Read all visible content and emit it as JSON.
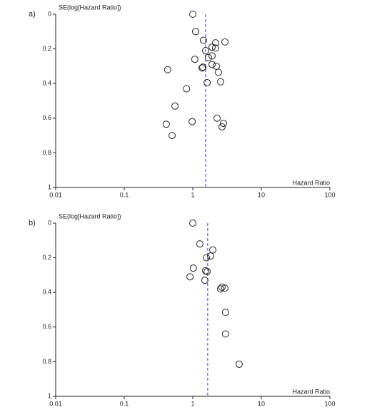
{
  "chart_data": [
    {
      "type": "scatter",
      "panel_label": "a)",
      "y_label": "SE(log[Hazard Ratio])",
      "x_label": "Hazard Ratio",
      "x": [
        1.0,
        1.1,
        1.43,
        2.94,
        2.15,
        1.91,
        2.15,
        1.54,
        1.91,
        1.69,
        1.07,
        1.91,
        2.2,
        1.4,
        1.37,
        0.43,
        2.37,
        2.55,
        1.62,
        0.81,
        0.55,
        2.26,
        0.98,
        2.8,
        0.41,
        2.67,
        0.5
      ],
      "values": [
        0,
        0.1,
        0.15,
        0.16,
        0.165,
        0.19,
        0.195,
        0.21,
        0.24,
        0.25,
        0.26,
        0.29,
        0.3,
        0.305,
        0.31,
        0.32,
        0.335,
        0.39,
        0.395,
        0.43,
        0.53,
        0.6,
        0.62,
        0.63,
        0.635,
        0.65,
        0.7
      ],
      "xlim": [
        0.01,
        100
      ],
      "xticks": [
        0.01,
        0.1,
        1,
        10,
        100
      ],
      "x_log": true,
      "ylim": [
        0,
        1
      ],
      "yticks": [
        0,
        0.2,
        0.4,
        0.6,
        0.8,
        1
      ],
      "y_reversed": true,
      "reference_line": 1.54,
      "reference_color": "#3a3acc",
      "color": "#222222"
    },
    {
      "type": "scatter",
      "panel_label": "b)",
      "y_label": "SE(log[Hazard Ratio])",
      "x_label": "Hazard Ratio",
      "x": [
        1.0,
        1.27,
        1.96,
        1.82,
        1.58,
        1.02,
        1.54,
        1.62,
        0.91,
        1.5,
        2.67,
        2.94,
        2.55,
        3.0,
        3.0,
        4.75
      ],
      "values": [
        0,
        0.12,
        0.155,
        0.19,
        0.2,
        0.26,
        0.275,
        0.28,
        0.31,
        0.33,
        0.37,
        0.375,
        0.38,
        0.515,
        0.64,
        0.815
      ],
      "xlim": [
        0.01,
        100
      ],
      "xticks": [
        0.01,
        0.1,
        1,
        10,
        100
      ],
      "x_log": true,
      "ylim": [
        0,
        1
      ],
      "yticks": [
        0,
        0.2,
        0.4,
        0.6,
        0.8,
        1
      ],
      "y_reversed": true,
      "reference_line": 1.65,
      "reference_color": "#3a3acc",
      "color": "#222222"
    }
  ]
}
